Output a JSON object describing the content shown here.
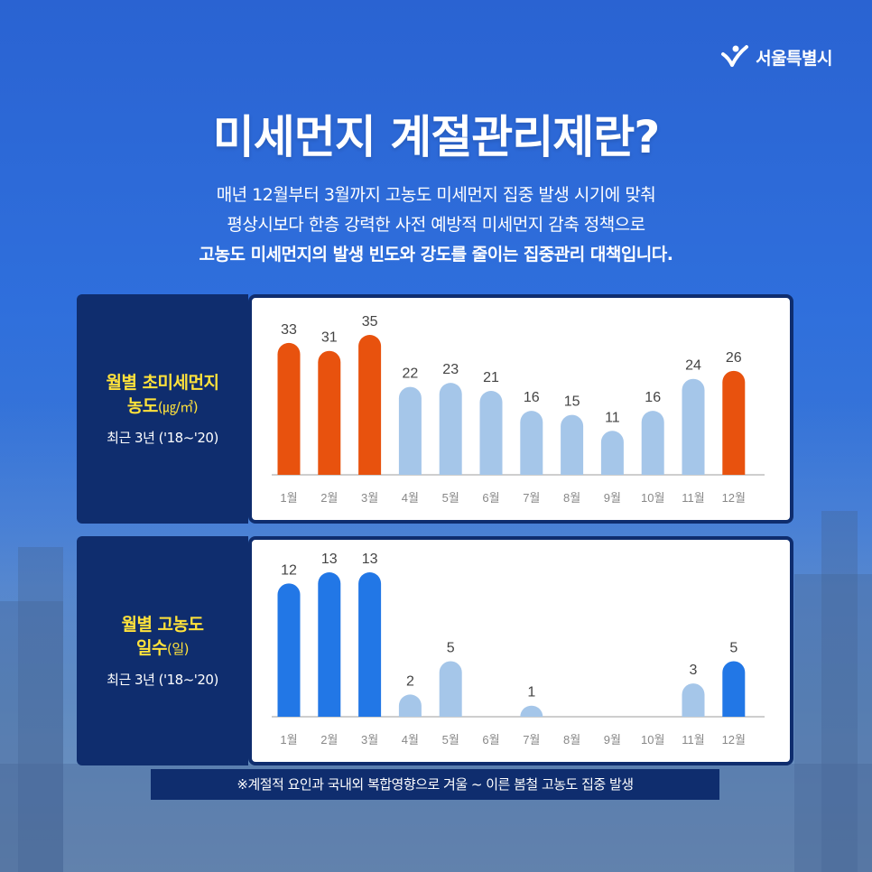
{
  "logo": {
    "text": "서울특별시"
  },
  "title": "미세먼지 계절관리제란?",
  "description": [
    "매년 12월부터 3월까지 고농도 미세먼지 집중 발생 시기에 맞춰",
    "평상시보다 한층 강력한 사전 예방적 미세먼지 감축 정책으로",
    "고농도 미세먼지의 발생 빈도와 강도를 줄이는 집중관리 대책입니다."
  ],
  "footnote": "※계절적 요인과 국내외 복합영향으로 겨울 ~ 이른 봄철 고농도 집중 발생",
  "colors": {
    "navy": "#0f2d6e",
    "highlight_orange": "#e8520e",
    "highlight_blue": "#2277e6",
    "light_bar": "#a5c6e9",
    "label_yellow": "#ffe23b"
  },
  "chart_data": [
    {
      "type": "bar",
      "label_line1": "월별 초미세먼지",
      "label_line2": "농도",
      "label_unit": "(㎍/㎥)",
      "period": "최근 3년 ('18~'20)",
      "categories": [
        "1월",
        "2월",
        "3월",
        "4월",
        "5월",
        "6월",
        "7월",
        "8월",
        "9월",
        "10월",
        "11월",
        "12월"
      ],
      "values": [
        33,
        31,
        35,
        22,
        23,
        21,
        16,
        15,
        11,
        16,
        24,
        26
      ],
      "highlight": [
        true,
        true,
        true,
        false,
        false,
        false,
        false,
        false,
        false,
        false,
        false,
        true
      ],
      "ylim": [
        0,
        35
      ],
      "grid": false
    },
    {
      "type": "bar",
      "label_line1": "월별 고농도",
      "label_line2": "일수",
      "label_unit": "(일)",
      "period": "최근 3년 ('18~'20)",
      "categories": [
        "1월",
        "2월",
        "3월",
        "4월",
        "5월",
        "6월",
        "7월",
        "8월",
        "9월",
        "10월",
        "11월",
        "12월"
      ],
      "values": [
        12,
        13,
        13,
        2,
        5,
        0,
        1,
        0,
        0,
        0,
        3,
        5
      ],
      "value_labels": [
        "12",
        "13",
        "13",
        "2",
        "5",
        "",
        "1",
        "",
        "",
        "",
        "3",
        "5"
      ],
      "highlight": [
        true,
        true,
        true,
        false,
        false,
        false,
        false,
        false,
        false,
        false,
        false,
        true
      ],
      "ylim": [
        0,
        13
      ],
      "grid": false
    }
  ]
}
